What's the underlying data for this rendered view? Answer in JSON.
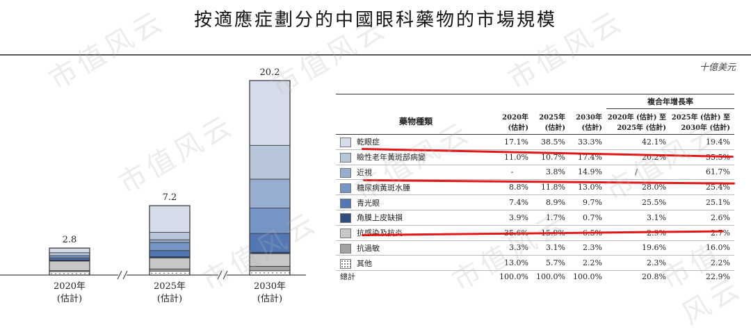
{
  "title": "按適應症劃分的中國眼科藥物的市場規模",
  "unit": "十億美元",
  "watermark": "市值风云",
  "colors": {
    "dry_eye": "#d3dce8",
    "mgd": "#b7c6d9",
    "myopia": "#97aed0",
    "dme": "#7595c5",
    "glaucoma": "#5277b4",
    "corneal": "#2f4e7c",
    "infection": "#c7c7c7",
    "allergy": "#a2a2a2",
    "other": "#ffffff",
    "annotation": "#e21717"
  },
  "chart_data": {
    "type": "bar",
    "stacked": true,
    "categories": [
      "2020年\n(估計)",
      "2025年\n(估計)",
      "2030年\n(估計)"
    ],
    "category_labels": [
      {
        "year": "2020年",
        "note": "(估計)"
      },
      {
        "year": "2025年",
        "note": "(估計)"
      },
      {
        "year": "2030年",
        "note": "(估計)"
      }
    ],
    "totals": [
      2.8,
      7.2,
      20.2
    ],
    "total_labels": [
      "2.8",
      "7.2",
      "20.2"
    ],
    "series": [
      {
        "name": "乾眼症",
        "key": "dry_eye",
        "share_pct": [
          17.1,
          38.5,
          33.3
        ]
      },
      {
        "name": "瞼性老年黃斑部病變",
        "key": "mgd",
        "share_pct": [
          11.0,
          10.7,
          17.4
        ]
      },
      {
        "name": "近視",
        "key": "myopia",
        "share_pct": [
          0,
          3.8,
          14.9
        ]
      },
      {
        "name": "糖尿病黃斑水腫",
        "key": "dme",
        "share_pct": [
          8.8,
          11.8,
          13.0
        ]
      },
      {
        "name": "青光眼",
        "key": "glaucoma",
        "share_pct": [
          7.4,
          8.9,
          9.7
        ]
      },
      {
        "name": "角膜上皮缺損",
        "key": "corneal",
        "share_pct": [
          3.9,
          1.7,
          0.7
        ]
      },
      {
        "name": "抗感染及抗炎",
        "key": "infection",
        "share_pct": [
          35.6,
          15.9,
          6.5
        ]
      },
      {
        "name": "抗過敏",
        "key": "allergy",
        "share_pct": [
          3.3,
          3.1,
          2.3
        ]
      },
      {
        "name": "其他",
        "key": "other",
        "share_pct": [
          13.0,
          5.7,
          2.2
        ]
      }
    ],
    "ylim": [
      0,
      20.2
    ],
    "axis_break_symbol": "//"
  },
  "table": {
    "header": {
      "category": "藥物種類",
      "growth_group": "複合年增長率",
      "cols": [
        [
          "2020年",
          "(估計)"
        ],
        [
          "2025年",
          "(估計)"
        ],
        [
          "2030年",
          "(估計)"
        ],
        [
          "2020年 (估計) 至",
          "2025年 (估計)"
        ],
        [
          "2025年 (估計) 至",
          "2030年 (估計)"
        ]
      ]
    },
    "rows": [
      {
        "name": "乾眼症",
        "key": "dry_eye",
        "values": [
          "17.1%",
          "38.5%",
          "33.3%",
          "42.1%",
          "19.4%"
        ]
      },
      {
        "name": "瞼性老年黃斑部病變",
        "key": "mgd",
        "values": [
          "11.0%",
          "10.7%",
          "17.4%",
          "20.2%",
          "35.5%"
        ]
      },
      {
        "name": "近視",
        "key": "myopia",
        "values": [
          "-",
          "3.8%",
          "14.9%",
          "/",
          "61.7%"
        ]
      },
      {
        "name": "糖尿病黃斑水腫",
        "key": "dme",
        "values": [
          "8.8%",
          "11.8%",
          "13.0%",
          "28.0%",
          "25.4%"
        ]
      },
      {
        "name": "青光眼",
        "key": "glaucoma",
        "values": [
          "7.4%",
          "8.9%",
          "9.7%",
          "25.5%",
          "25.1%"
        ]
      },
      {
        "name": "角膜上皮缺損",
        "key": "corneal",
        "values": [
          "3.9%",
          "1.7%",
          "0.7%",
          "3.1%",
          "2.6%"
        ]
      },
      {
        "name": "抗感染及抗炎",
        "key": "infection",
        "values": [
          "35.6%",
          "15.9%",
          "6.5%",
          "2.9%",
          "2.7%"
        ]
      },
      {
        "name": "抗過敏",
        "key": "allergy",
        "values": [
          "3.3%",
          "3.1%",
          "2.3%",
          "19.6%",
          "16.0%"
        ]
      },
      {
        "name": "其他",
        "key": "other",
        "values": [
          "13.0%",
          "5.7%",
          "2.2%",
          "2.3%",
          "2.2%"
        ]
      }
    ],
    "total": {
      "name": "總計",
      "values": [
        "100.0%",
        "100.0%",
        "100.0%",
        "20.8%",
        "22.9%"
      ]
    }
  }
}
